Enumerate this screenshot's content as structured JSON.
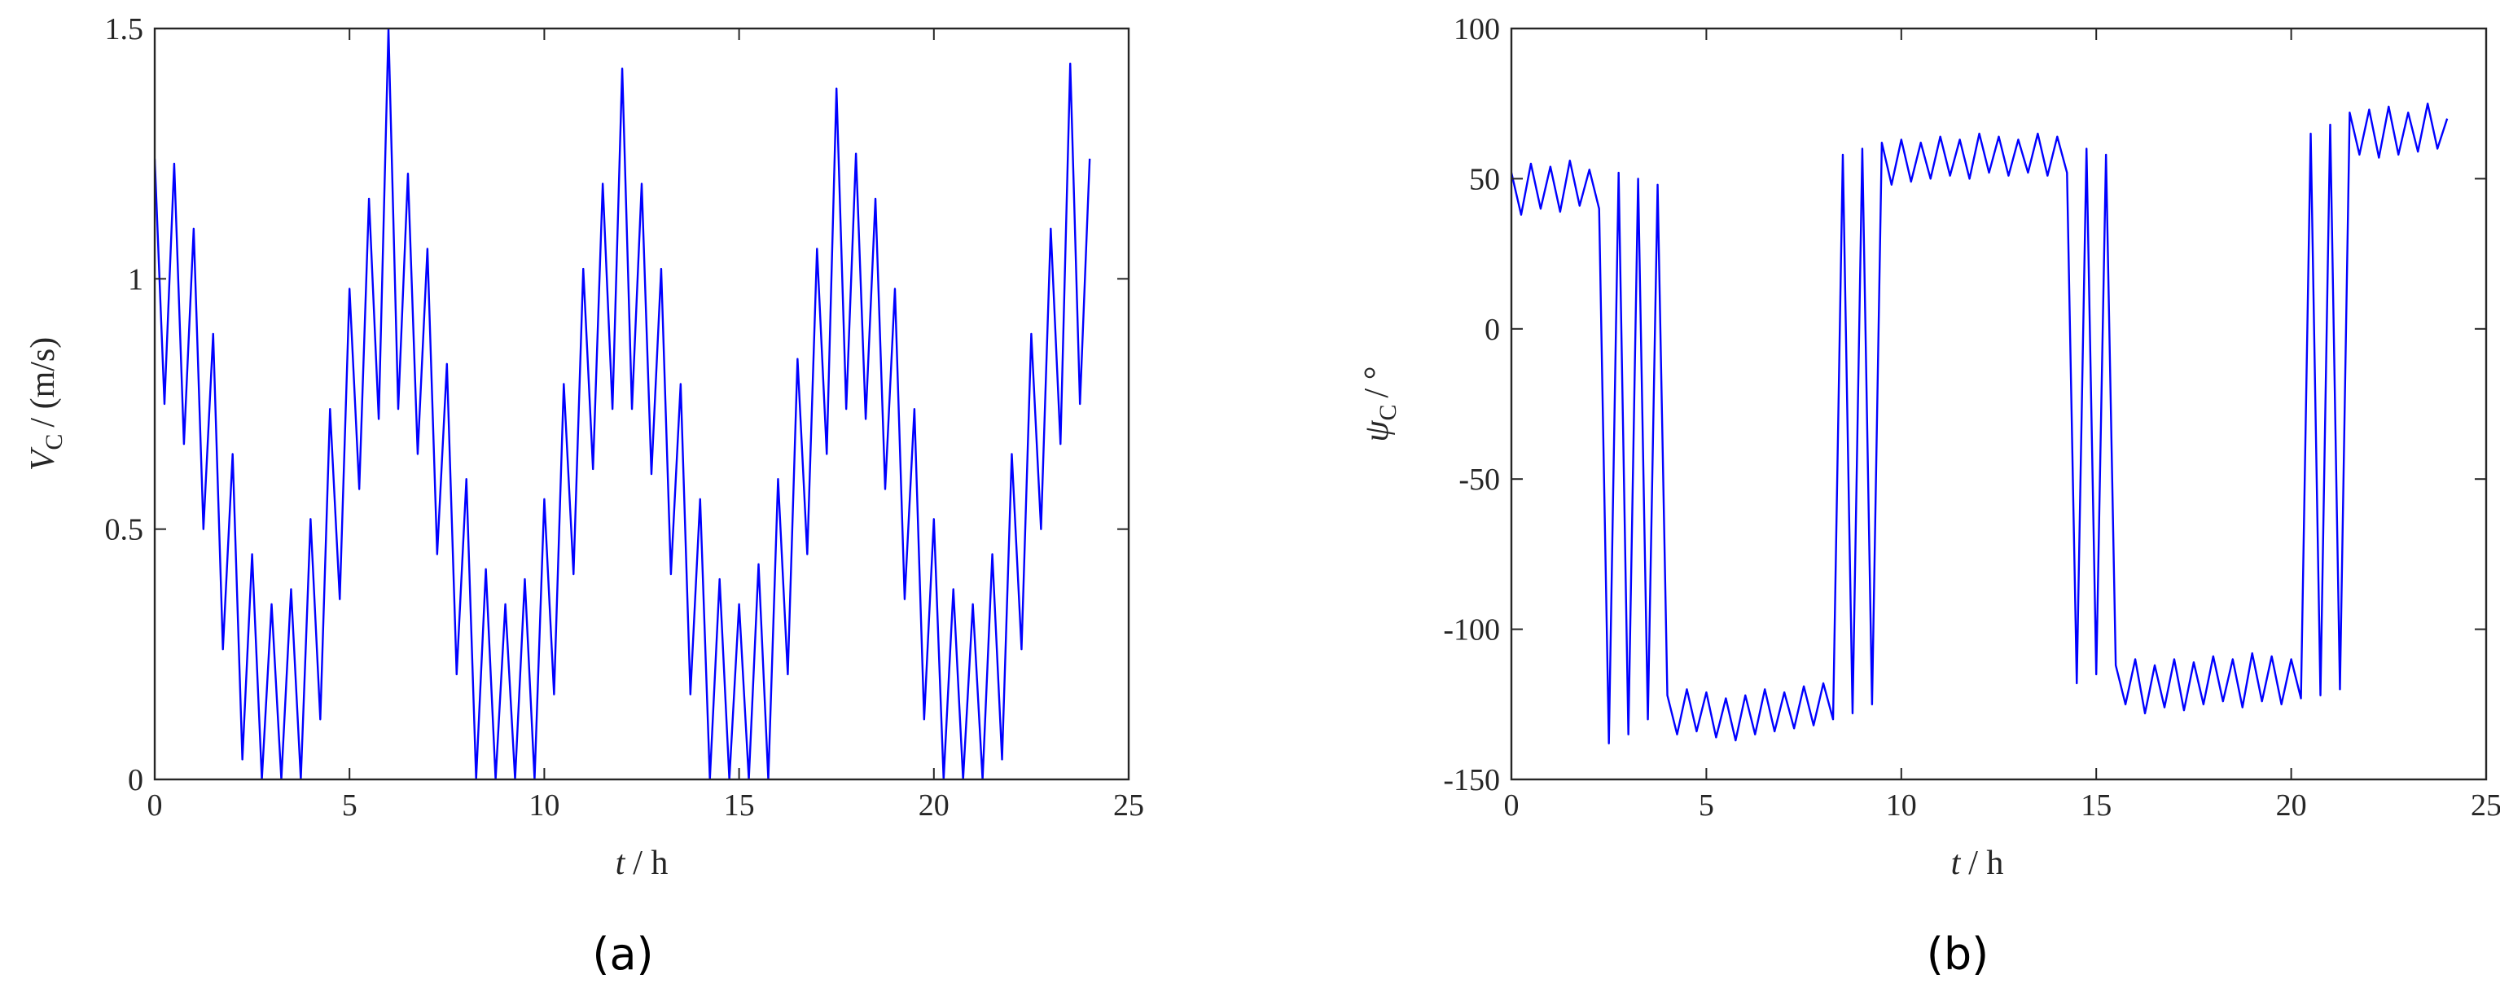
{
  "chart_data": [
    {
      "type": "line",
      "panel_label": "(a)",
      "xlabel": {
        "symbol": "t",
        "unit": "/ h"
      },
      "ylabel": {
        "symbol": "V",
        "subscript": "C",
        "unit": "/ (m/s)"
      },
      "x": [
        0,
        0.25,
        0.5,
        0.75,
        1,
        1.25,
        1.5,
        1.75,
        2,
        2.25,
        2.5,
        2.75,
        3,
        3.25,
        3.5,
        3.75,
        4,
        4.25,
        4.5,
        4.75,
        5,
        5.25,
        5.5,
        5.75,
        6,
        6.25,
        6.5,
        6.75,
        7,
        7.25,
        7.5,
        7.75,
        8,
        8.25,
        8.5,
        8.75,
        9,
        9.25,
        9.5,
        9.75,
        10,
        10.25,
        10.5,
        10.75,
        11,
        11.25,
        11.5,
        11.75,
        12,
        12.25,
        12.5,
        12.75,
        13,
        13.25,
        13.5,
        13.75,
        14,
        14.25,
        14.5,
        14.75,
        15,
        15.25,
        15.5,
        15.75,
        16,
        16.25,
        16.5,
        16.75,
        17,
        17.25,
        17.5,
        17.75,
        18,
        18.25,
        18.5,
        18.75,
        19,
        19.25,
        19.5,
        19.75,
        20,
        20.25,
        20.5,
        20.75,
        21,
        21.25,
        21.5,
        21.75,
        22,
        22.25,
        22.5,
        22.75,
        23,
        23.25,
        23.5,
        23.75,
        24
      ],
      "series": [
        {
          "color": "#0000ff",
          "values": [
            1.24,
            0.75,
            1.23,
            0.67,
            1.1,
            0.5,
            0.89,
            0.26,
            0.65,
            0.04,
            0.45,
            0,
            0.35,
            0,
            0.38,
            0,
            0.52,
            0.12,
            0.74,
            0.36,
            0.98,
            0.58,
            1.16,
            0.72,
            1.5,
            0.74,
            1.21,
            0.65,
            1.06,
            0.45,
            0.83,
            0.21,
            0.6,
            0,
            0.42,
            0,
            0.35,
            0,
            0.4,
            0,
            0.56,
            0.17,
            0.79,
            0.41,
            1.02,
            0.62,
            1.19,
            0.74,
            1.42,
            0.74,
            1.19,
            0.61,
            1.02,
            0.41,
            0.79,
            0.17,
            0.56,
            0,
            0.4,
            0,
            0.35,
            0,
            0.43,
            0,
            0.6,
            0.21,
            0.84,
            0.45,
            1.06,
            0.65,
            1.38,
            0.74,
            1.25,
            0.72,
            1.16,
            0.58,
            0.98,
            0.36,
            0.74,
            0.12,
            0.52,
            0,
            0.38,
            0,
            0.35,
            0,
            0.45,
            0.04,
            0.65,
            0.26,
            0.89,
            0.5,
            1.1,
            0.67,
            1.43,
            0.75,
            1.24
          ]
        }
      ],
      "xlim": [
        0,
        25
      ],
      "xticks": [
        0,
        5,
        10,
        15,
        20,
        25
      ],
      "ylim": [
        0,
        1.5
      ],
      "yticks": [
        0,
        0.5,
        1,
        1.5
      ]
    },
    {
      "type": "line",
      "panel_label": "(b)",
      "xlabel": {
        "symbol": "t",
        "unit": "/ h"
      },
      "ylabel": {
        "symbol": "ψ",
        "subscript": "C",
        "unit": "/ °"
      },
      "x": [
        0,
        0.25,
        0.5,
        0.75,
        1,
        1.25,
        1.5,
        1.75,
        2,
        2.25,
        2.5,
        2.75,
        3,
        3.25,
        3.5,
        3.75,
        4,
        4.25,
        4.5,
        4.75,
        5,
        5.25,
        5.5,
        5.75,
        6,
        6.25,
        6.5,
        6.75,
        7,
        7.25,
        7.5,
        7.75,
        8,
        8.25,
        8.5,
        8.75,
        9,
        9.25,
        9.5,
        9.75,
        10,
        10.25,
        10.5,
        10.75,
        11,
        11.25,
        11.5,
        11.75,
        12,
        12.25,
        12.5,
        12.75,
        13,
        13.25,
        13.5,
        13.75,
        14,
        14.25,
        14.5,
        14.75,
        15,
        15.25,
        15.5,
        15.75,
        16,
        16.25,
        16.5,
        16.75,
        17,
        17.25,
        17.5,
        17.75,
        18,
        18.25,
        18.5,
        18.75,
        19,
        19.25,
        19.5,
        19.75,
        20,
        20.25,
        20.5,
        20.75,
        21,
        21.25,
        21.5,
        21.75,
        22,
        22.25,
        22.5,
        22.75,
        23,
        23.25,
        23.5,
        23.75,
        24
      ],
      "series": [
        {
          "color": "#0000ff",
          "values": [
            52,
            38,
            55,
            40,
            54,
            39,
            56,
            41,
            53,
            40,
            -138,
            52,
            -135,
            50,
            -130,
            48,
            -122,
            -135,
            -120,
            -134,
            -121,
            -136,
            -123,
            -137,
            -122,
            -135,
            -120,
            -134,
            -121,
            -133,
            -119,
            -132,
            -118,
            -130,
            58,
            -128,
            60,
            -125,
            62,
            48,
            63,
            49,
            62,
            50,
            64,
            51,
            63,
            50,
            65,
            52,
            64,
            51,
            63,
            52,
            65,
            51,
            64,
            52,
            -118,
            60,
            -115,
            58,
            -112,
            -125,
            -110,
            -128,
            -112,
            -126,
            -110,
            -127,
            -111,
            -125,
            -109,
            -124,
            -110,
            -126,
            -108,
            -124,
            -109,
            -125,
            -110,
            -123,
            65,
            -122,
            68,
            -120,
            72,
            58,
            73,
            57,
            74,
            58,
            72,
            59,
            75,
            60,
            70
          ]
        }
      ],
      "xlim": [
        0,
        25
      ],
      "xticks": [
        0,
        5,
        10,
        15,
        20,
        25
      ],
      "ylim": [
        -150,
        100
      ],
      "yticks": [
        -150,
        -100,
        -50,
        0,
        50,
        100
      ]
    }
  ]
}
